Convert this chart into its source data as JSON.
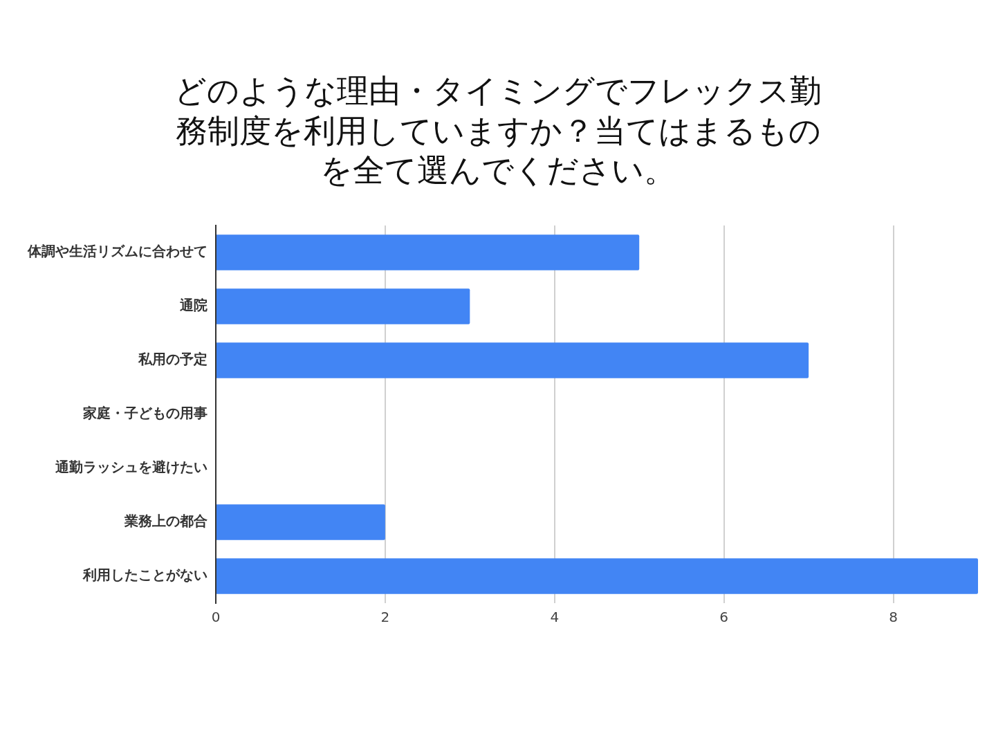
{
  "chart_data": {
    "type": "bar",
    "orientation": "horizontal",
    "title": "どのような理由・タイミングでフレックス勤務制度を利用していますか？当てはまるものを全て選んでください。",
    "categories": [
      "体調や生活リズムに合わせて",
      "通院",
      "私用の予定",
      "家庭・子どもの用事",
      "通勤ラッシュを避けたい",
      "業務上の都合",
      "利用したことがない"
    ],
    "values": [
      5,
      3,
      7,
      0,
      0,
      2,
      9
    ],
    "color": "#4285f4",
    "xlim": [
      0,
      9
    ],
    "xticks": [
      0,
      2,
      4,
      6,
      8
    ],
    "grid": "x",
    "legend": false
  }
}
